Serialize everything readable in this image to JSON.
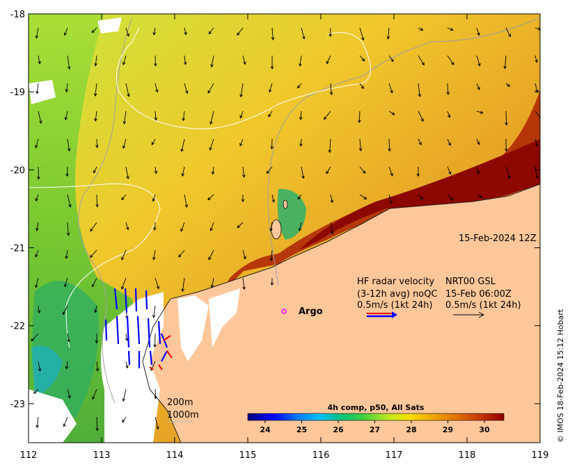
{
  "map": {
    "x_axis": {
      "min": 112,
      "max": 119,
      "ticks": [
        "112",
        "113",
        "114",
        "115",
        "116",
        "117",
        "118",
        "119"
      ]
    },
    "y_axis": {
      "min": -23.5,
      "max": -18,
      "ticks": [
        "-18",
        "-19",
        "-20",
        "-21",
        "-22",
        "-23"
      ]
    },
    "date_label": "15-Feb-2024 12Z",
    "hf_radar": {
      "line1": "HF radar velocity",
      "line2": "(3-12h avg) noQC",
      "line3": "0.5m/s (1kt 24h)"
    },
    "nrt": {
      "line1": "NRT00 GSL",
      "line2": "15-Feb 06:00Z",
      "line3": "0.5m/s (1kt 24h)"
    },
    "argo_label": "Argo",
    "isobaths": {
      "shallow": "200m",
      "deep": "1000m"
    },
    "colorbar": {
      "title": "4h comp, p50, All Sats",
      "ticks": [
        "24",
        "25",
        "26",
        "27",
        "28",
        "29",
        "30"
      ],
      "colors": [
        "#000080",
        "#0000ff",
        "#0080ff",
        "#00c0ff",
        "#00e0c0",
        "#00c060",
        "#40d040",
        "#a0e040",
        "#e0f000",
        "#f8d000",
        "#f0a000",
        "#e07000",
        "#c03000",
        "#900000"
      ]
    },
    "credit": "© IMOS 18-Feb-2024 15:12 Hobart",
    "colors": {
      "land": "#fec79a",
      "cloud": "#ffffff",
      "warm": "#e39a2c",
      "hot": "#9a0d00",
      "cool": "#7fd22e",
      "hf_vector": "#0000ff",
      "hf_vector_qc": "#ff0000",
      "argo": "#ff00ff"
    }
  }
}
